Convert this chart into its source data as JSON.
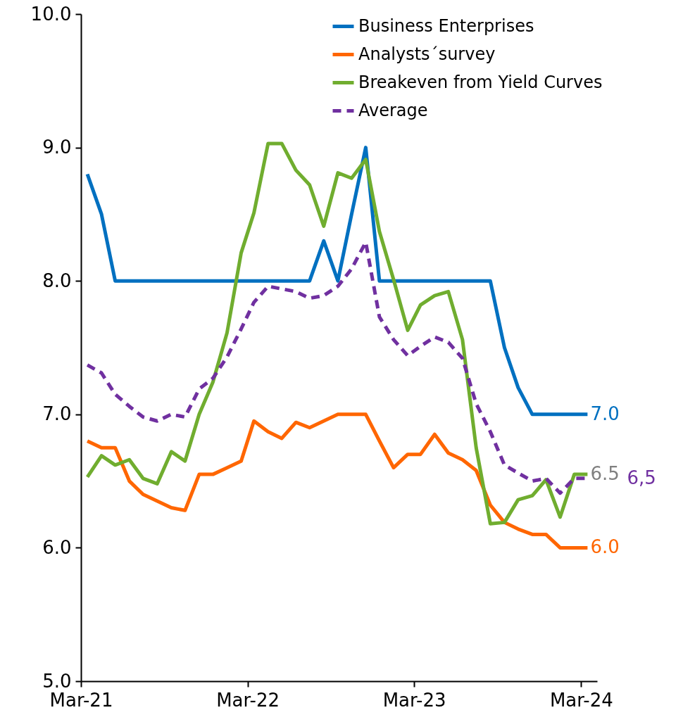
{
  "chart_data": {
    "type": "line",
    "x": [
      "2021-03-15",
      "2021-04-15",
      "2021-05-15",
      "2021-06-15",
      "2021-07-15",
      "2021-08-15",
      "2021-09-15",
      "2021-10-15",
      "2021-11-15",
      "2021-12-15",
      "2022-01-15",
      "2022-02-15",
      "2022-03-15",
      "2022-04-15",
      "2022-05-15",
      "2022-06-15",
      "2022-07-15",
      "2022-08-15",
      "2022-09-15",
      "2022-10-15",
      "2022-11-15",
      "2022-12-15",
      "2023-01-15",
      "2023-02-15",
      "2023-03-15",
      "2023-04-15",
      "2023-05-15",
      "2023-06-15",
      "2023-07-15",
      "2023-08-15",
      "2023-09-15",
      "2023-10-15",
      "2023-11-15",
      "2023-12-15",
      "2024-01-15",
      "2024-02-15",
      "2024-03-15"
    ],
    "series": [
      {
        "name": "Business Enterprises",
        "color": "#0070c0",
        "values": [
          8.8,
          8.5,
          8.0,
          8.0,
          8.0,
          8.0,
          8.0,
          8.0,
          8.0,
          8.0,
          8.0,
          8.0,
          8.0,
          8.0,
          8.0,
          8.0,
          8.0,
          8.3,
          8.0,
          8.5,
          9.0,
          8.0,
          8.0,
          8.0,
          8.0,
          8.0,
          8.0,
          8.0,
          8.0,
          8.0,
          7.5,
          7.2,
          7.0,
          7.0,
          7.0,
          7.0,
          7.0
        ]
      },
      {
        "name": "Analysts´survey",
        "color": "#ff6600",
        "values": [
          6.8,
          6.75,
          6.75,
          6.5,
          6.4,
          6.35,
          6.3,
          6.28,
          6.55,
          6.55,
          6.6,
          6.65,
          6.95,
          6.87,
          6.82,
          6.94,
          6.9,
          6.95,
          7.0,
          7.0,
          7.0,
          6.8,
          6.6,
          6.7,
          6.7,
          6.85,
          6.71,
          6.66,
          6.58,
          6.32,
          6.19,
          6.14,
          6.1,
          6.1,
          6.0,
          6.0,
          6.0
        ]
      },
      {
        "name": "Breakeven from Yield Curves",
        "color": "#70ad2f",
        "values": [
          6.53,
          6.69,
          6.62,
          6.66,
          6.52,
          6.48,
          6.72,
          6.65,
          7.0,
          7.24,
          7.61,
          8.21,
          8.51,
          9.03,
          9.03,
          8.83,
          8.72,
          8.41,
          8.81,
          8.77,
          8.91,
          8.37,
          8.01,
          7.63,
          7.82,
          7.89,
          7.92,
          7.56,
          6.75,
          6.18,
          6.19,
          6.36,
          6.39,
          6.51,
          6.23,
          6.55,
          6.55
        ]
      },
      {
        "name": "Average",
        "color": "#7030a0",
        "line_style": "dashed",
        "values": [
          7.37,
          7.31,
          7.15,
          7.06,
          6.98,
          6.95,
          7.0,
          6.98,
          7.19,
          7.27,
          7.43,
          7.64,
          7.84,
          7.96,
          7.94,
          7.92,
          7.87,
          7.89,
          7.96,
          8.09,
          8.29,
          7.73,
          7.56,
          7.44,
          7.51,
          7.58,
          7.54,
          7.42,
          7.08,
          6.87,
          6.62,
          6.56,
          6.5,
          6.52,
          6.41,
          6.52,
          6.52
        ]
      }
    ],
    "xlim": [
      "2021-03-01",
      "2024-04-05"
    ],
    "xticks": [
      {
        "value": "2021-03-01",
        "label": "Mar-21"
      },
      {
        "value": "2022-03-01",
        "label": "Mar-22"
      },
      {
        "value": "2023-03-01",
        "label": "Mar-23"
      },
      {
        "value": "2024-03-01",
        "label": "Mar-24"
      }
    ],
    "ylim": [
      5,
      10
    ],
    "yticks": [
      {
        "value": 5,
        "label": "5.0"
      },
      {
        "value": 6,
        "label": "6.0"
      },
      {
        "value": 7,
        "label": "7.0"
      },
      {
        "value": 8,
        "label": "8.0"
      },
      {
        "value": 9,
        "label": "9.0"
      },
      {
        "value": 10,
        "label": "10.0"
      }
    ],
    "annotations": [
      {
        "text": "7.0",
        "x": "2024-03-15",
        "y": 7.0
      },
      {
        "text": "6.0",
        "x": "2024-03-15",
        "y": 6.0
      },
      {
        "text": "6.5",
        "x": "2024-03-15",
        "y": 6.55
      },
      {
        "text": "6,5",
        "x": "2024-03-15",
        "y": 6.52
      }
    ],
    "legend": "top right",
    "grid": false,
    "line_style": "solid",
    "marker": "none"
  }
}
